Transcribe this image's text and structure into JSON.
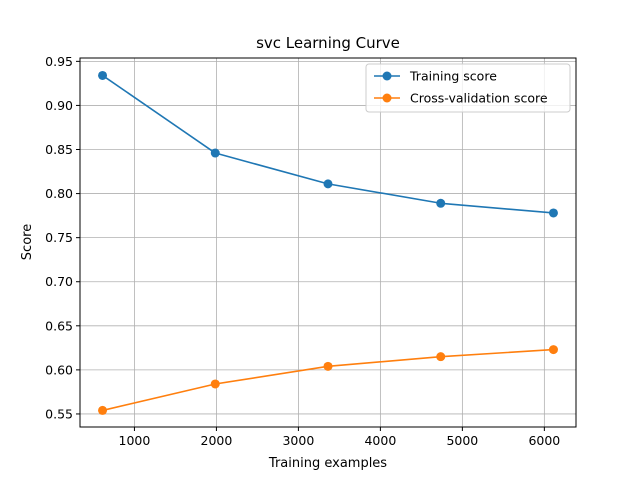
{
  "chart_data": {
    "type": "line",
    "title": "svc Learning Curve",
    "xlabel": "Training examples",
    "ylabel": "Score",
    "x": [
      611,
      1986,
      3361,
      4736,
      6111
    ],
    "series": [
      {
        "name": "Training score",
        "color": "#1f77b4",
        "values": [
          0.934,
          0.846,
          0.811,
          0.789,
          0.778
        ]
      },
      {
        "name": "Cross-validation score",
        "color": "#ff7f0e",
        "values": [
          0.554,
          0.584,
          0.604,
          0.615,
          0.623
        ]
      }
    ],
    "xlim": [
      336,
      6386
    ],
    "ylim": [
      0.5352,
      0.9538
    ],
    "xticks": [
      1000,
      2000,
      3000,
      4000,
      5000,
      6000
    ],
    "xtick_labels": [
      "1000",
      "2000",
      "3000",
      "4000",
      "5000",
      "6000"
    ],
    "yticks": [
      0.55,
      0.6,
      0.65,
      0.7,
      0.75,
      0.8,
      0.85,
      0.9,
      0.95
    ],
    "ytick_labels": [
      "0.55",
      "0.60",
      "0.65",
      "0.70",
      "0.75",
      "0.80",
      "0.85",
      "0.90",
      "0.95"
    ],
    "grid": true,
    "legend_position": "top-right"
  }
}
